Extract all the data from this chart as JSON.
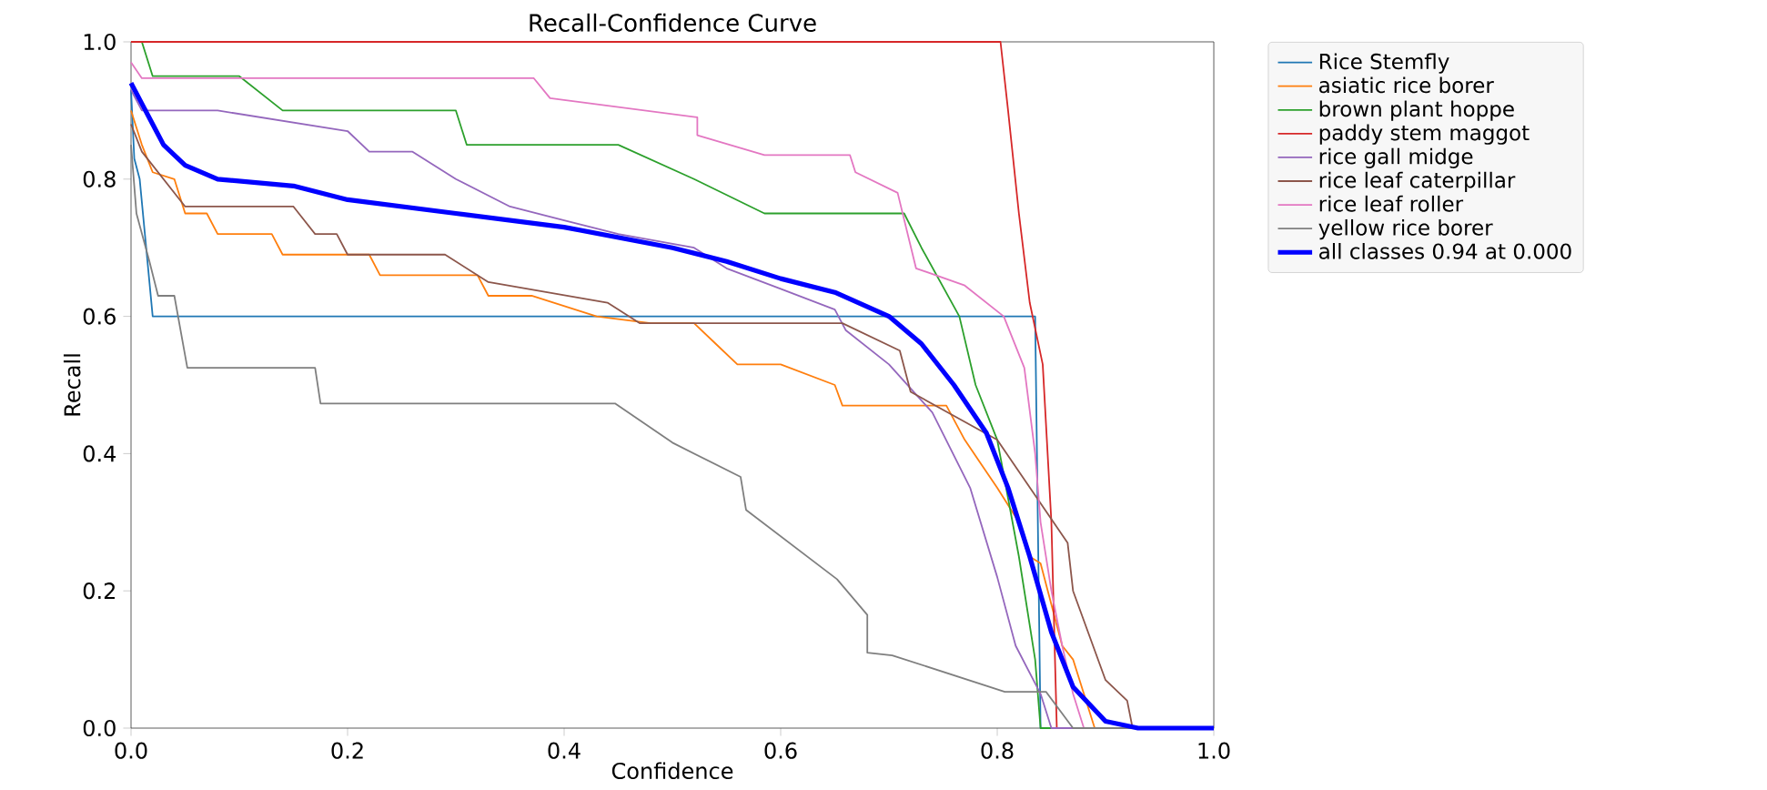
{
  "chart_data": {
    "type": "line",
    "title": "Recall-Confidence Curve",
    "xlabel": "Confidence",
    "ylabel": "Recall",
    "xlim": [
      0,
      1
    ],
    "ylim": [
      0,
      1
    ],
    "xticks": [
      {
        "value": 0,
        "label": "0.0"
      },
      {
        "value": 0.2,
        "label": "0.2"
      },
      {
        "value": 0.4,
        "label": "0.4"
      },
      {
        "value": 0.6,
        "label": "0.6"
      },
      {
        "value": 0.8,
        "label": "0.8"
      },
      {
        "value": 1,
        "label": "1.0"
      }
    ],
    "yticks": [
      {
        "value": 0,
        "label": "0.0"
      },
      {
        "value": 0.2,
        "label": "0.2"
      },
      {
        "value": 0.4,
        "label": "0.4"
      },
      {
        "value": 0.6,
        "label": "0.6"
      },
      {
        "value": 0.8,
        "label": "0.8"
      },
      {
        "value": 1,
        "label": "1.0"
      }
    ],
    "grid": false,
    "legend": "top right",
    "marker": "none",
    "line_style": "solid",
    "series": [
      {
        "name": "Rice Stemfly",
        "color": "#1f77b4",
        "x": [
          0,
          0.003,
          0.008,
          0.02,
          0.835,
          0.84,
          1.0
        ],
        "values": [
          0.93,
          0.83,
          0.8,
          0.6,
          0.6,
          0.0,
          0.0
        ]
      },
      {
        "name": "asiatic rice borer",
        "color": "#ff7f0e",
        "x": [
          0,
          0.01,
          0.02,
          0.04,
          0.05,
          0.07,
          0.08,
          0.13,
          0.14,
          0.22,
          0.23,
          0.32,
          0.33,
          0.37,
          0.43,
          0.48,
          0.52,
          0.54,
          0.56,
          0.6,
          0.65,
          0.657,
          0.753,
          0.77,
          0.8,
          0.82,
          0.83,
          0.84,
          0.86,
          0.87,
          0.88,
          0.89,
          1.0
        ],
        "values": [
          0.9,
          0.85,
          0.81,
          0.8,
          0.75,
          0.75,
          0.72,
          0.72,
          0.69,
          0.69,
          0.66,
          0.66,
          0.63,
          0.63,
          0.6,
          0.59,
          0.59,
          0.56,
          0.53,
          0.53,
          0.5,
          0.47,
          0.47,
          0.42,
          0.35,
          0.3,
          0.25,
          0.24,
          0.12,
          0.1,
          0.05,
          0.0,
          0.0
        ]
      },
      {
        "name": "brown plant hoppe",
        "color": "#2ca02c",
        "x": [
          0,
          0.01,
          0.02,
          0.1,
          0.14,
          0.3,
          0.31,
          0.45,
          0.52,
          0.585,
          0.714,
          0.73,
          0.765,
          0.78,
          0.8,
          0.82,
          0.835,
          0.84,
          1.0
        ],
        "values": [
          1.0,
          1.0,
          0.95,
          0.95,
          0.9,
          0.9,
          0.85,
          0.85,
          0.8,
          0.75,
          0.75,
          0.7,
          0.6,
          0.5,
          0.42,
          0.25,
          0.1,
          0.0,
          0.0
        ]
      },
      {
        "name": "paddy stem maggot",
        "color": "#d62728",
        "x": [
          0,
          0.803,
          0.81,
          0.82,
          0.83,
          0.842,
          0.85,
          0.855,
          1.0
        ],
        "values": [
          1.0,
          1.0,
          0.9,
          0.75,
          0.62,
          0.53,
          0.3,
          0.0,
          0.0
        ]
      },
      {
        "name": "rice gall midge",
        "color": "#9467bd",
        "x": [
          0,
          0.01,
          0.08,
          0.2,
          0.22,
          0.26,
          0.3,
          0.35,
          0.4,
          0.45,
          0.52,
          0.55,
          0.6,
          0.65,
          0.66,
          0.7,
          0.74,
          0.775,
          0.8,
          0.817,
          0.84,
          0.85,
          1.0
        ],
        "values": [
          0.93,
          0.9,
          0.9,
          0.87,
          0.84,
          0.84,
          0.8,
          0.76,
          0.74,
          0.72,
          0.7,
          0.67,
          0.64,
          0.61,
          0.58,
          0.53,
          0.46,
          0.35,
          0.22,
          0.12,
          0.05,
          0.0,
          0.0
        ]
      },
      {
        "name": "rice leaf caterpillar",
        "color": "#8c564b",
        "x": [
          0,
          0.01,
          0.03,
          0.05,
          0.15,
          0.17,
          0.19,
          0.2,
          0.29,
          0.33,
          0.44,
          0.47,
          0.657,
          0.71,
          0.72,
          0.8,
          0.865,
          0.87,
          0.9,
          0.92,
          0.925,
          1.0
        ],
        "values": [
          0.88,
          0.84,
          0.8,
          0.76,
          0.76,
          0.72,
          0.72,
          0.69,
          0.69,
          0.65,
          0.62,
          0.59,
          0.59,
          0.55,
          0.49,
          0.42,
          0.27,
          0.2,
          0.07,
          0.04,
          0.0,
          0.0
        ]
      },
      {
        "name": "rice leaf roller",
        "color": "#e377c2",
        "x": [
          0,
          0.01,
          0.372,
          0.387,
          0.523,
          0.523,
          0.585,
          0.664,
          0.669,
          0.708,
          0.725,
          0.77,
          0.806,
          0.825,
          0.835,
          0.84,
          0.85,
          0.86,
          0.87,
          0.88,
          1.0
        ],
        "values": [
          0.97,
          0.947,
          0.947,
          0.918,
          0.89,
          0.864,
          0.835,
          0.835,
          0.81,
          0.78,
          0.67,
          0.645,
          0.6,
          0.525,
          0.4,
          0.3,
          0.2,
          0.12,
          0.05,
          0.0,
          0.0
        ]
      },
      {
        "name": "yellow rice borer",
        "color": "#7f7f7f",
        "x": [
          0,
          0.005,
          0.017,
          0.025,
          0.04,
          0.052,
          0.17,
          0.175,
          0.447,
          0.5,
          0.563,
          0.568,
          0.652,
          0.68,
          0.68,
          0.703,
          0.807,
          0.845,
          0.87,
          1.0
        ],
        "values": [
          0.85,
          0.75,
          0.68,
          0.63,
          0.63,
          0.525,
          0.525,
          0.473,
          0.473,
          0.416,
          0.366,
          0.318,
          0.217,
          0.165,
          0.11,
          0.106,
          0.053,
          0.053,
          0.0,
          0.0
        ]
      },
      {
        "name": "all classes 0.94 at 0.000",
        "color": "#0000ff",
        "x": [
          0,
          0.01,
          0.02,
          0.03,
          0.05,
          0.08,
          0.15,
          0.2,
          0.3,
          0.4,
          0.5,
          0.55,
          0.6,
          0.65,
          0.7,
          0.73,
          0.76,
          0.79,
          0.81,
          0.83,
          0.85,
          0.87,
          0.9,
          0.93,
          1.0
        ],
        "values": [
          0.94,
          0.91,
          0.88,
          0.85,
          0.82,
          0.8,
          0.79,
          0.77,
          0.75,
          0.73,
          0.7,
          0.68,
          0.655,
          0.635,
          0.6,
          0.56,
          0.5,
          0.43,
          0.35,
          0.25,
          0.14,
          0.06,
          0.01,
          0.0,
          0.0
        ]
      }
    ]
  }
}
